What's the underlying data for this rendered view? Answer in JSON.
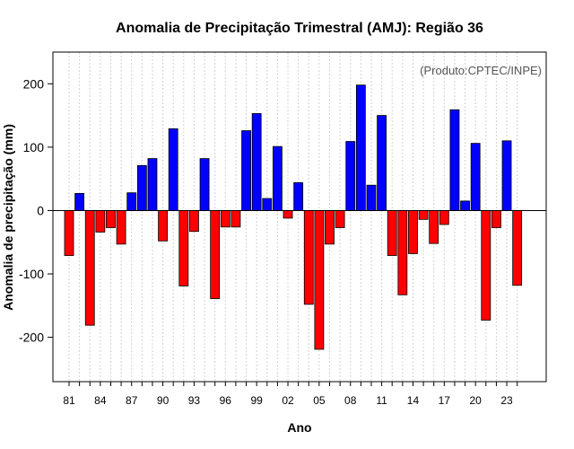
{
  "chart_data": {
    "type": "bar",
    "title": "Anomalia de Precipitação Trimestral (AMJ): Região 36",
    "xlabel": "Ano",
    "ylabel": "Anomalia de precipitação (mm)",
    "credit": "(Produto:CPTEC/INPE)",
    "ylim": [
      -270,
      250
    ],
    "yticks": [
      -200,
      -100,
      0,
      100,
      200
    ],
    "grid": true,
    "positive_color": "#0000ff",
    "negative_color": "#ff0000",
    "years": [
      1981,
      1982,
      1983,
      1984,
      1985,
      1986,
      1987,
      1988,
      1989,
      1990,
      1991,
      1992,
      1993,
      1994,
      1995,
      1996,
      1997,
      1998,
      1999,
      2000,
      2001,
      2002,
      2003,
      2004,
      2005,
      2006,
      2007,
      2008,
      2009,
      2010,
      2011,
      2012,
      2013,
      2014,
      2015,
      2016,
      2017,
      2018,
      2019,
      2020,
      2021,
      2022,
      2023,
      2024
    ],
    "values": [
      -71,
      27,
      -181,
      -34,
      -27,
      -53,
      28,
      71,
      82,
      -48,
      129,
      -119,
      -33,
      82,
      -139,
      -26,
      -26,
      126,
      153,
      19,
      101,
      -12,
      44,
      -148,
      -219,
      -53,
      -27,
      109,
      198,
      40,
      150,
      -71,
      -133,
      -68,
      -14,
      -52,
      -22,
      159,
      15,
      106,
      -173,
      -27,
      110,
      -118
    ],
    "tick_labels": [
      "81",
      "84",
      "87",
      "90",
      "93",
      "96",
      "99",
      "02",
      "05",
      "08",
      "11",
      "14",
      "17",
      "20",
      "23"
    ],
    "tick_years": [
      1981,
      1984,
      1987,
      1990,
      1993,
      1996,
      1999,
      2002,
      2005,
      2008,
      2011,
      2014,
      2017,
      2020,
      2023
    ]
  }
}
